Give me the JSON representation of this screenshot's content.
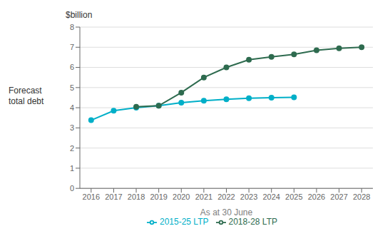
{
  "chart_data": {
    "type": "line",
    "x_label": "As at 30 June",
    "y_label": "Forecast\ntotal debt",
    "annotations": [
      "$billion"
    ],
    "x": [
      2016,
      2017,
      2018,
      2019,
      2020,
      2021,
      2022,
      2023,
      2024,
      2025,
      2026,
      2027,
      2028
    ],
    "series": [
      {
        "name": "2015-25 LTP",
        "color": "#00afc8",
        "marker": "circle",
        "values": [
          3.38,
          3.85,
          4.0,
          4.1,
          4.25,
          4.35,
          4.42,
          4.47,
          4.5,
          4.52,
          null,
          null,
          null
        ]
      },
      {
        "name": "2018-28 LTP",
        "color": "#2e6b4f",
        "marker": "circle",
        "values": [
          null,
          null,
          4.05,
          4.1,
          4.75,
          5.5,
          6.0,
          6.38,
          6.52,
          6.65,
          6.85,
          6.95,
          7.0
        ]
      }
    ],
    "xlim": [
      2015.5,
      2028.5
    ],
    "xticks": [
      2016,
      2017,
      2018,
      2019,
      2020,
      2021,
      2022,
      2023,
      2024,
      2025,
      2026,
      2027,
      2028
    ],
    "ylim": [
      0,
      8
    ],
    "yticks": [
      0,
      1,
      2,
      3,
      4,
      5,
      6,
      7,
      8
    ],
    "grid": "y",
    "legend": "bottom"
  }
}
